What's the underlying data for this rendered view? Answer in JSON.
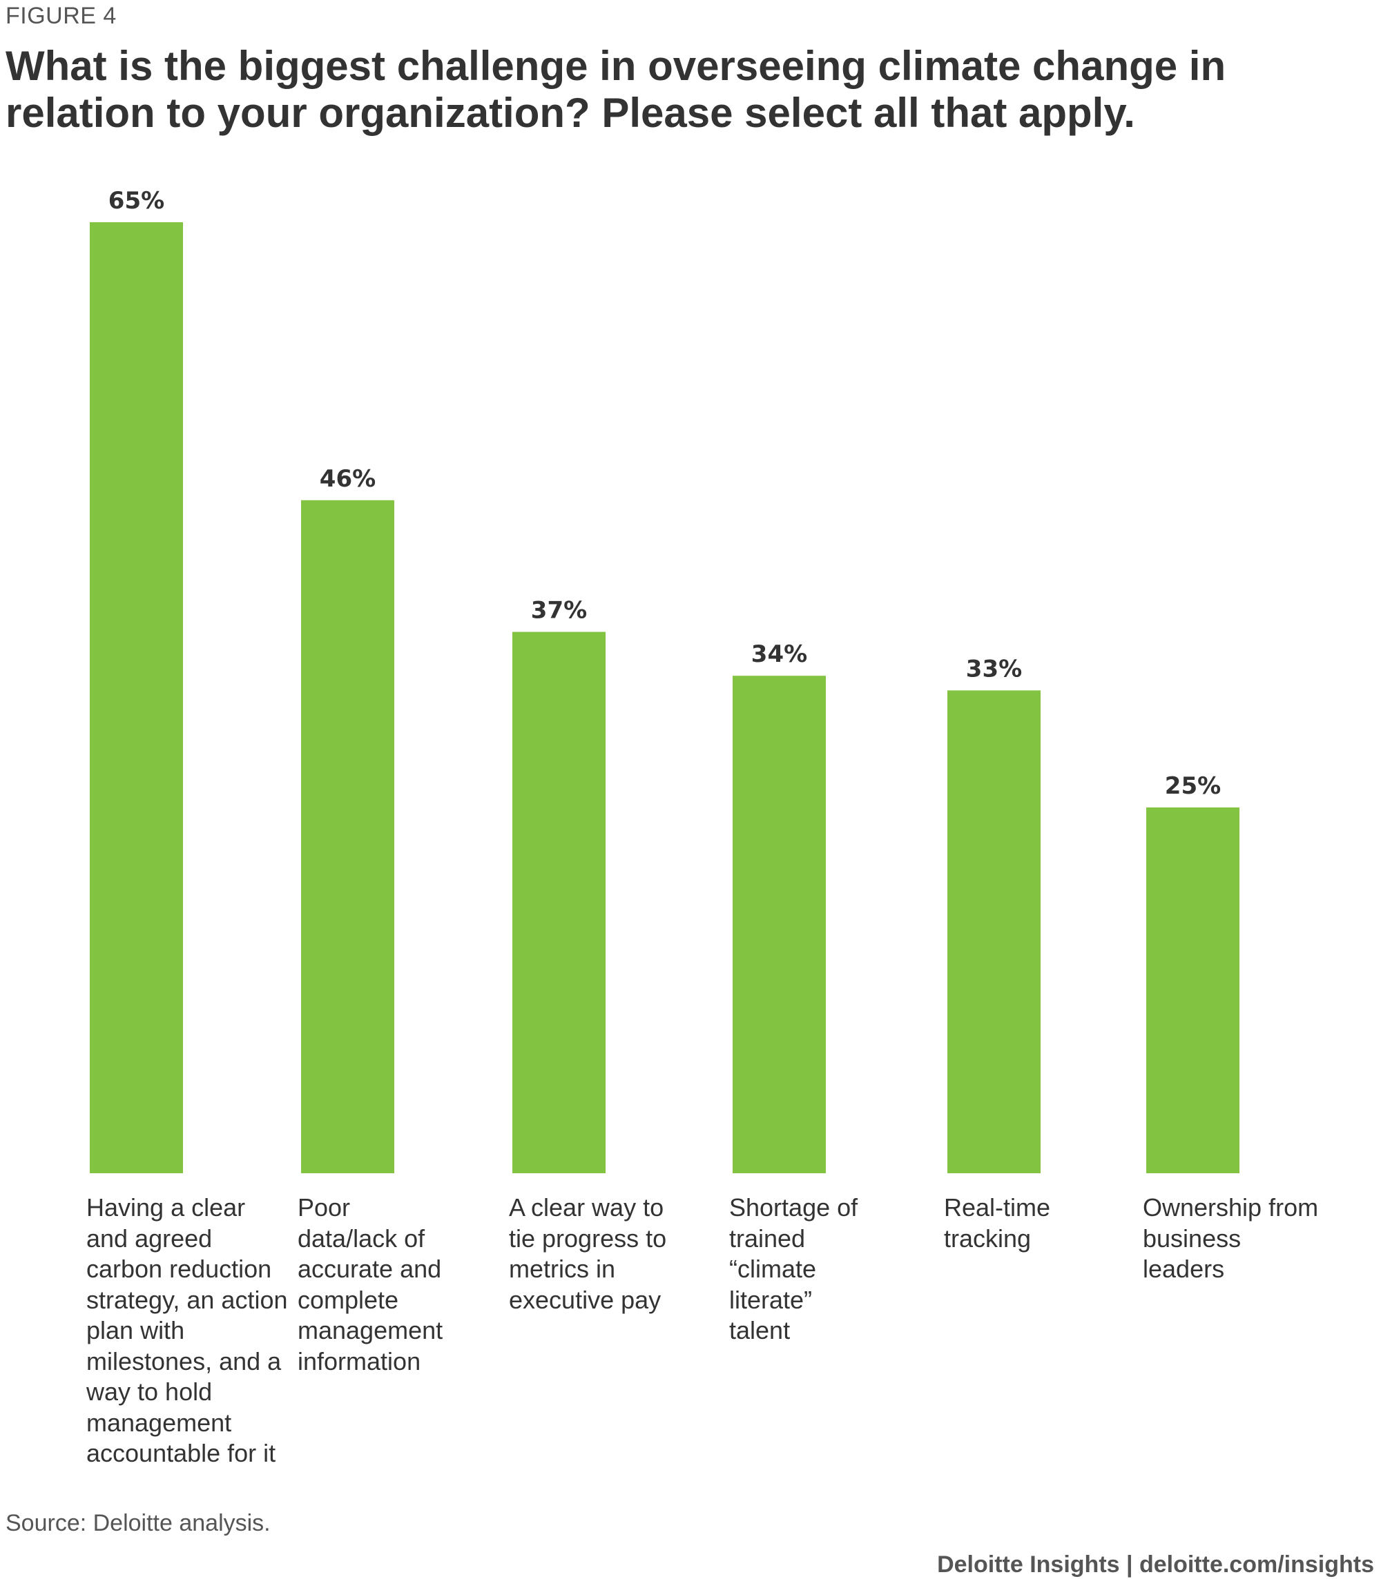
{
  "figure_label": "FIGURE 4",
  "footer": {
    "source": "Source: Deloitte analysis.",
    "credit": "Deloitte Insights | deloitte.com/insights"
  },
  "colors": {
    "bar": "#82c341",
    "text": "#333333"
  },
  "chart_data": {
    "type": "bar",
    "title": "What is the biggest challenge in overseeing climate change in relation to your organization? Please select all that apply.",
    "xlabel": "",
    "ylabel": "",
    "ylim": [
      0,
      65
    ],
    "grid": false,
    "categories": [
      "Having a clear and agreed carbon reduction strategy, an action plan with milestones, and a way to hold management accountable for it",
      "Poor data/lack of accurate and complete management information",
      "A clear way to tie progress to metrics in executive pay",
      "Shortage of trained “climate literate” talent",
      "Real-time tracking",
      "Ownership from business leaders"
    ],
    "values": [
      65,
      46,
      37,
      34,
      33,
      25
    ],
    "value_labels": [
      "65%",
      "46%",
      "37%",
      "34%",
      "33%",
      "25%"
    ]
  }
}
